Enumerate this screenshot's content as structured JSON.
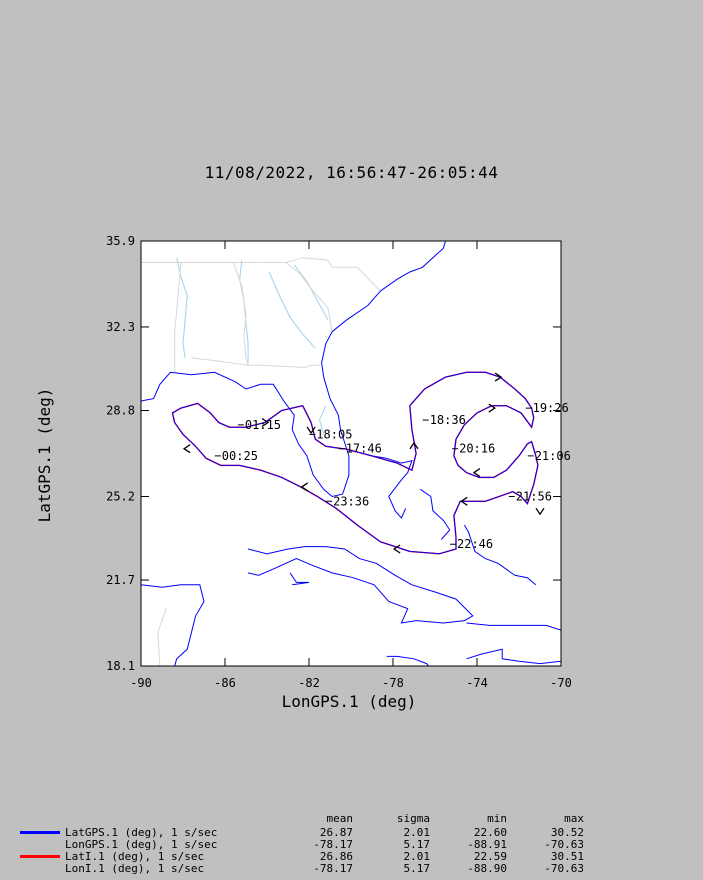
{
  "title": "11/08/2022, 16:56:47-26:05:44",
  "colors": {
    "background": "#c0c0c0",
    "plot_background": "#ffffff",
    "track_gps": "#0000ff",
    "track_ins": "#ff0000",
    "coast": "#0000ff",
    "borders": "#ffffff",
    "rivers": "#a0d0e8"
  },
  "chart_data": {
    "type": "line",
    "xlabel": "LonGPS.1 (deg)",
    "ylabel": "LatGPS.1 (deg)",
    "xlim": [
      -90,
      -70
    ],
    "ylim": [
      18.1,
      35.9
    ],
    "xticks": [
      -90,
      -86,
      -82,
      -78,
      -74,
      -70
    ],
    "yticks": [
      18.1,
      21.7,
      25.2,
      28.8,
      32.3,
      35.9
    ],
    "xtick_labels": [
      "-90",
      "-86",
      "-82",
      "-78",
      "-74",
      "-70"
    ],
    "ytick_labels": [
      "18.1",
      "21.7",
      "25.2",
      "28.8",
      "32.3",
      "35.9"
    ],
    "series": [
      {
        "name": "LatGPS.1 vs LonGPS.1",
        "x": [
          -80.3,
          -79.0,
          -77.8,
          -77.1,
          -76.9,
          -77.1,
          -77.2,
          -76.5,
          -75.5,
          -74.5,
          -73.6,
          -72.9,
          -72.2,
          -71.7,
          -71.4,
          -71.3,
          -71.4,
          -71.9,
          -72.6,
          -73.3,
          -74.0,
          -74.6,
          -75.0,
          -75.1,
          -74.9,
          -74.5,
          -73.9,
          -73.2,
          -72.6,
          -72.0,
          -71.6,
          -71.4,
          -71.3,
          -71.2,
          -71.1,
          -71.3,
          -71.6,
          -71.9,
          -72.3,
          -73.6,
          -74.8,
          -75.1,
          -75.0,
          -75.0,
          -75.8,
          -77.2,
          -78.6,
          -79.7,
          -80.7,
          -81.6,
          -82.4,
          -83.3,
          -84.3,
          -85.3,
          -86.2,
          -86.9,
          -87.4,
          -88.0,
          -88.4,
          -88.5,
          -88.1,
          -87.3,
          -86.7,
          -86.3,
          -85.8,
          -85.0,
          -84.1,
          -83.3,
          -82.3,
          -81.9,
          -81.7,
          -81.2,
          -80.4
        ],
        "y": [
          27.2,
          26.9,
          26.6,
          26.3,
          27.0,
          28.0,
          29.0,
          29.7,
          30.2,
          30.4,
          30.4,
          30.2,
          29.7,
          29.3,
          28.9,
          28.5,
          28.1,
          28.7,
          29.0,
          29.0,
          28.7,
          28.2,
          27.6,
          26.9,
          26.5,
          26.2,
          26.0,
          26.0,
          26.3,
          26.9,
          27.4,
          27.5,
          27.2,
          26.9,
          26.5,
          25.7,
          24.9,
          25.2,
          25.4,
          25.0,
          25.0,
          24.4,
          23.5,
          23.0,
          22.8,
          22.9,
          23.3,
          24.0,
          24.7,
          25.2,
          25.6,
          26.0,
          26.3,
          26.5,
          26.5,
          26.8,
          27.3,
          27.8,
          28.3,
          28.7,
          28.9,
          29.1,
          28.7,
          28.3,
          28.1,
          28.1,
          28.3,
          28.8,
          29.0,
          28.3,
          27.6,
          27.3,
          27.2
        ]
      }
    ],
    "time_labels": [
      {
        "text": "18:05",
        "lon": -81.7,
        "lat": 27.8
      },
      {
        "text": "17:46",
        "lon": -80.3,
        "lat": 27.2
      },
      {
        "text": "18:36",
        "lon": -76.3,
        "lat": 28.4
      },
      {
        "text": "19:26",
        "lon": -71.4,
        "lat": 28.9
      },
      {
        "text": "20:16",
        "lon": -74.9,
        "lat": 27.2
      },
      {
        "text": "21:06",
        "lon": -71.3,
        "lat": 26.9
      },
      {
        "text": "21:56",
        "lon": -72.2,
        "lat": 25.2
      },
      {
        "text": "22:46",
        "lon": -75.0,
        "lat": 23.2
      },
      {
        "text": "23:36",
        "lon": -80.9,
        "lat": 25.0
      },
      {
        "text": "00:25",
        "lon": -86.2,
        "lat": 26.9
      },
      {
        "text": "01:15",
        "lon": -85.1,
        "lat": 28.2
      }
    ],
    "direction_arrows": [
      {
        "lon": -77.0,
        "lat": 27.4,
        "dir": "up"
      },
      {
        "lon": -72.9,
        "lat": 30.2,
        "dir": "right"
      },
      {
        "lon": -73.2,
        "lat": 28.9,
        "dir": "right"
      },
      {
        "lon": -74.1,
        "lat": 26.2,
        "dir": "left"
      },
      {
        "lon": -71.0,
        "lat": 24.5,
        "dir": "down"
      },
      {
        "lon": -74.7,
        "lat": 25.0,
        "dir": "left"
      },
      {
        "lon": -77.9,
        "lat": 23.0,
        "dir": "left"
      },
      {
        "lon": -82.3,
        "lat": 25.6,
        "dir": "left"
      },
      {
        "lon": -87.9,
        "lat": 27.2,
        "dir": "left"
      },
      {
        "lon": -84.0,
        "lat": 28.3,
        "dir": "right"
      },
      {
        "lon": -81.9,
        "lat": 27.9,
        "dir": "down"
      }
    ],
    "coastlines": [
      [
        [
          -90,
          29.2
        ],
        [
          -89.4,
          29.3
        ],
        [
          -89.1,
          29.9
        ],
        [
          -88.6,
          30.4
        ],
        [
          -87.6,
          30.3
        ],
        [
          -86.5,
          30.4
        ],
        [
          -85.5,
          30.0
        ],
        [
          -85.0,
          29.7
        ],
        [
          -84.3,
          29.9
        ],
        [
          -83.7,
          29.9
        ],
        [
          -83.2,
          29.2
        ],
        [
          -82.7,
          28.6
        ],
        [
          -82.8,
          28.0
        ],
        [
          -82.5,
          27.4
        ],
        [
          -82.1,
          26.9
        ],
        [
          -81.8,
          26.1
        ],
        [
          -81.3,
          25.5
        ],
        [
          -80.9,
          25.2
        ],
        [
          -80.4,
          25.3
        ],
        [
          -80.1,
          26.1
        ],
        [
          -80.1,
          26.9
        ],
        [
          -80.5,
          28.0
        ],
        [
          -80.6,
          28.6
        ],
        [
          -81.0,
          29.3
        ],
        [
          -81.3,
          30.2
        ],
        [
          -81.4,
          30.8
        ],
        [
          -81.2,
          31.6
        ],
        [
          -80.9,
          32.1
        ],
        [
          -80.2,
          32.6
        ],
        [
          -79.2,
          33.2
        ],
        [
          -78.6,
          33.8
        ],
        [
          -77.8,
          34.3
        ],
        [
          -77.2,
          34.6
        ],
        [
          -76.6,
          34.8
        ],
        [
          -76.1,
          35.2
        ],
        [
          -75.6,
          35.6
        ],
        [
          -75.5,
          35.9
        ]
      ],
      [
        [
          -84.9,
          23.0
        ],
        [
          -84.0,
          22.8
        ],
        [
          -83.0,
          23.0
        ],
        [
          -82.2,
          23.1
        ],
        [
          -81.2,
          23.1
        ],
        [
          -80.3,
          23.0
        ],
        [
          -79.6,
          22.6
        ],
        [
          -78.8,
          22.4
        ],
        [
          -77.9,
          21.9
        ],
        [
          -77.1,
          21.5
        ],
        [
          -76.0,
          21.2
        ],
        [
          -75.0,
          20.9
        ],
        [
          -74.2,
          20.2
        ],
        [
          -74.6,
          20.0
        ],
        [
          -75.6,
          19.9
        ],
        [
          -76.9,
          20.0
        ],
        [
          -77.6,
          19.9
        ],
        [
          -77.3,
          20.5
        ],
        [
          -78.2,
          20.8
        ],
        [
          -78.9,
          21.5
        ],
        [
          -79.9,
          21.8
        ],
        [
          -80.9,
          22.0
        ],
        [
          -81.8,
          22.3
        ],
        [
          -82.6,
          22.6
        ],
        [
          -83.6,
          22.2
        ],
        [
          -84.4,
          21.9
        ],
        [
          -84.9,
          22.0
        ]
      ],
      [
        [
          -74.5,
          19.9
        ],
        [
          -73.4,
          19.8
        ],
        [
          -72.6,
          19.8
        ],
        [
          -71.7,
          19.8
        ],
        [
          -70.7,
          19.8
        ],
        [
          -70.0,
          19.6
        ]
      ],
      [
        [
          -74.5,
          18.4
        ],
        [
          -73.8,
          18.6
        ],
        [
          -72.8,
          18.8
        ],
        [
          -72.8,
          18.4
        ],
        [
          -72.0,
          18.3
        ],
        [
          -71.0,
          18.2
        ],
        [
          -70.0,
          18.3
        ]
      ],
      [
        [
          -78.3,
          18.5
        ],
        [
          -77.8,
          18.5
        ],
        [
          -77.0,
          18.4
        ],
        [
          -76.4,
          18.2
        ],
        [
          -76.3,
          18.1
        ]
      ],
      [
        [
          -90,
          21.5
        ],
        [
          -89.0,
          21.4
        ],
        [
          -88.1,
          21.5
        ],
        [
          -87.2,
          21.5
        ],
        [
          -87.0,
          20.8
        ],
        [
          -87.4,
          20.2
        ],
        [
          -87.6,
          19.5
        ],
        [
          -87.8,
          18.8
        ],
        [
          -88.3,
          18.4
        ],
        [
          -88.4,
          18.1
        ]
      ],
      [
        [
          -79.0,
          26.9
        ],
        [
          -78.3,
          26.8
        ],
        [
          -77.6,
          26.6
        ],
        [
          -77.1,
          26.7
        ],
        [
          -77.3,
          26.2
        ],
        [
          -77.6,
          25.9
        ],
        [
          -78.2,
          25.2
        ],
        [
          -77.9,
          24.6
        ],
        [
          -77.6,
          24.3
        ],
        [
          -77.4,
          24.7
        ]
      ],
      [
        [
          -76.7,
          25.5
        ],
        [
          -76.2,
          25.2
        ],
        [
          -76.1,
          24.6
        ],
        [
          -75.6,
          24.2
        ],
        [
          -75.3,
          23.8
        ],
        [
          -75.7,
          23.4
        ]
      ],
      [
        [
          -74.6,
          24.0
        ],
        [
          -74.4,
          23.7
        ],
        [
          -74.1,
          22.9
        ],
        [
          -73.6,
          22.6
        ],
        [
          -73.0,
          22.4
        ],
        [
          -72.2,
          21.9
        ],
        [
          -71.6,
          21.8
        ],
        [
          -71.2,
          21.5
        ]
      ],
      [
        [
          -82.9,
          22.0
        ],
        [
          -82.6,
          21.6
        ],
        [
          -82.0,
          21.6
        ],
        [
          -82.8,
          21.5
        ]
      ]
    ],
    "borders": [
      [
        [
          -88.1,
          35.0
        ],
        [
          -88.2,
          34.0
        ],
        [
          -88.4,
          32.0
        ],
        [
          -88.4,
          31.0
        ],
        [
          -88.4,
          30.4
        ]
      ],
      [
        [
          -85.6,
          35.0
        ],
        [
          -85.2,
          34.0
        ],
        [
          -85.0,
          32.8
        ],
        [
          -85.1,
          31.9
        ],
        [
          -85.0,
          31.0
        ],
        [
          -84.9,
          30.7
        ],
        [
          -86.6,
          30.9
        ],
        [
          -87.6,
          31.0
        ]
      ],
      [
        [
          -84.3,
          35.0
        ],
        [
          -83.1,
          35.0
        ],
        [
          -82.3,
          35.2
        ],
        [
          -81.1,
          35.1
        ],
        [
          -80.9,
          34.8
        ],
        [
          -79.7,
          34.8
        ],
        [
          -78.6,
          33.8
        ]
      ],
      [
        [
          -83.1,
          35.0
        ],
        [
          -82.4,
          34.5
        ],
        [
          -81.9,
          33.9
        ],
        [
          -81.1,
          33.1
        ],
        [
          -80.9,
          32.1
        ]
      ],
      [
        [
          -85.0,
          30.7
        ],
        [
          -84.2,
          30.7
        ],
        [
          -82.2,
          30.6
        ],
        [
          -81.9,
          30.7
        ],
        [
          -81.5,
          30.7
        ]
      ],
      [
        [
          -90,
          35.0
        ],
        [
          -88.1,
          35.0
        ],
        [
          -85.6,
          35.0
        ],
        [
          -84.3,
          35.0
        ]
      ],
      [
        [
          -89.1,
          18.1
        ],
        [
          -89.2,
          19.5
        ],
        [
          -88.8,
          20.5
        ]
      ]
    ],
    "rivers": [
      [
        [
          -88.3,
          35.2
        ],
        [
          -88.1,
          34.4
        ],
        [
          -87.8,
          33.6
        ],
        [
          -87.9,
          32.6
        ],
        [
          -88.0,
          31.6
        ],
        [
          -87.9,
          31.0
        ]
      ],
      [
        [
          -85.2,
          35.1
        ],
        [
          -85.3,
          34.3
        ],
        [
          -85.1,
          33.4
        ],
        [
          -85.0,
          32.4
        ],
        [
          -84.9,
          31.6
        ],
        [
          -84.9,
          30.8
        ]
      ],
      [
        [
          -83.9,
          34.6
        ],
        [
          -83.4,
          33.6
        ],
        [
          -82.9,
          32.7
        ],
        [
          -82.3,
          32.0
        ],
        [
          -81.7,
          31.4
        ]
      ],
      [
        [
          -82.7,
          34.9
        ],
        [
          -82.1,
          34.2
        ],
        [
          -81.6,
          33.4
        ],
        [
          -81.1,
          32.6
        ]
      ],
      [
        [
          -81.2,
          29.0
        ],
        [
          -81.5,
          28.4
        ],
        [
          -81.3,
          27.8
        ]
      ]
    ]
  },
  "stats": {
    "headers": {
      "mean": "mean",
      "sigma": "sigma",
      "min": "min",
      "max": "max"
    },
    "rows": [
      {
        "name": "LatGPS.1 (deg), 1 s/sec",
        "color": "#0000ff",
        "mean": "26.87",
        "sigma": "2.01",
        "min": "22.60",
        "max": "30.52"
      },
      {
        "name": "LonGPS.1 (deg), 1 s/sec",
        "color": "",
        "mean": "-78.17",
        "sigma": "5.17",
        "min": "-88.91",
        "max": "-70.63"
      },
      {
        "name": "LatI.1 (deg), 1 s/sec",
        "color": "#ff0000",
        "mean": "26.86",
        "sigma": "2.01",
        "min": "22.59",
        "max": "30.51"
      },
      {
        "name": "LonI.1 (deg), 1 s/sec",
        "color": "",
        "mean": "-78.17",
        "sigma": "5.17",
        "min": "-88.90",
        "max": "-70.63"
      }
    ]
  }
}
